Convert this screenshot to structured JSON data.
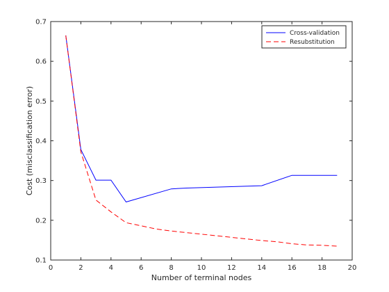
{
  "chart_data": {
    "type": "line",
    "title": "",
    "xlabel": "Number of terminal nodes",
    "ylabel": "Cost (misclassification error)",
    "xlim": [
      0,
      20
    ],
    "ylim": [
      0.1,
      0.7
    ],
    "xticks": [
      "0",
      "2",
      "4",
      "6",
      "8",
      "10",
      "12",
      "14",
      "16",
      "18",
      "20"
    ],
    "yticks": [
      "0.1",
      "0.2",
      "0.3",
      "0.4",
      "0.5",
      "0.6",
      "0.7"
    ],
    "grid": false,
    "legend_position": "top-right",
    "series": [
      {
        "name": "Cross-validation",
        "color": "#0000ff",
        "style": "solid",
        "points": [
          [
            1,
            0.665
          ],
          [
            2,
            0.378
          ],
          [
            3,
            0.301
          ],
          [
            4,
            0.301
          ],
          [
            5,
            0.246
          ],
          [
            8,
            0.279
          ],
          [
            9,
            0.281
          ],
          [
            14,
            0.287
          ],
          [
            16,
            0.313
          ],
          [
            19,
            0.313
          ]
        ]
      },
      {
        "name": "Resubstitution",
        "color": "#ff0000",
        "style": "dashed",
        "points": [
          [
            1,
            0.665
          ],
          [
            2,
            0.372
          ],
          [
            3,
            0.251
          ],
          [
            4,
            0.221
          ],
          [
            5,
            0.194
          ],
          [
            6,
            0.186
          ],
          [
            7,
            0.178
          ],
          [
            8,
            0.173
          ],
          [
            9,
            0.169
          ],
          [
            10,
            0.165
          ],
          [
            11,
            0.161
          ],
          [
            12,
            0.157
          ],
          [
            13,
            0.153
          ],
          [
            14,
            0.149
          ],
          [
            15,
            0.146
          ],
          [
            16,
            0.141
          ],
          [
            17,
            0.138
          ],
          [
            18,
            0.137
          ],
          [
            19,
            0.135
          ]
        ]
      }
    ]
  }
}
